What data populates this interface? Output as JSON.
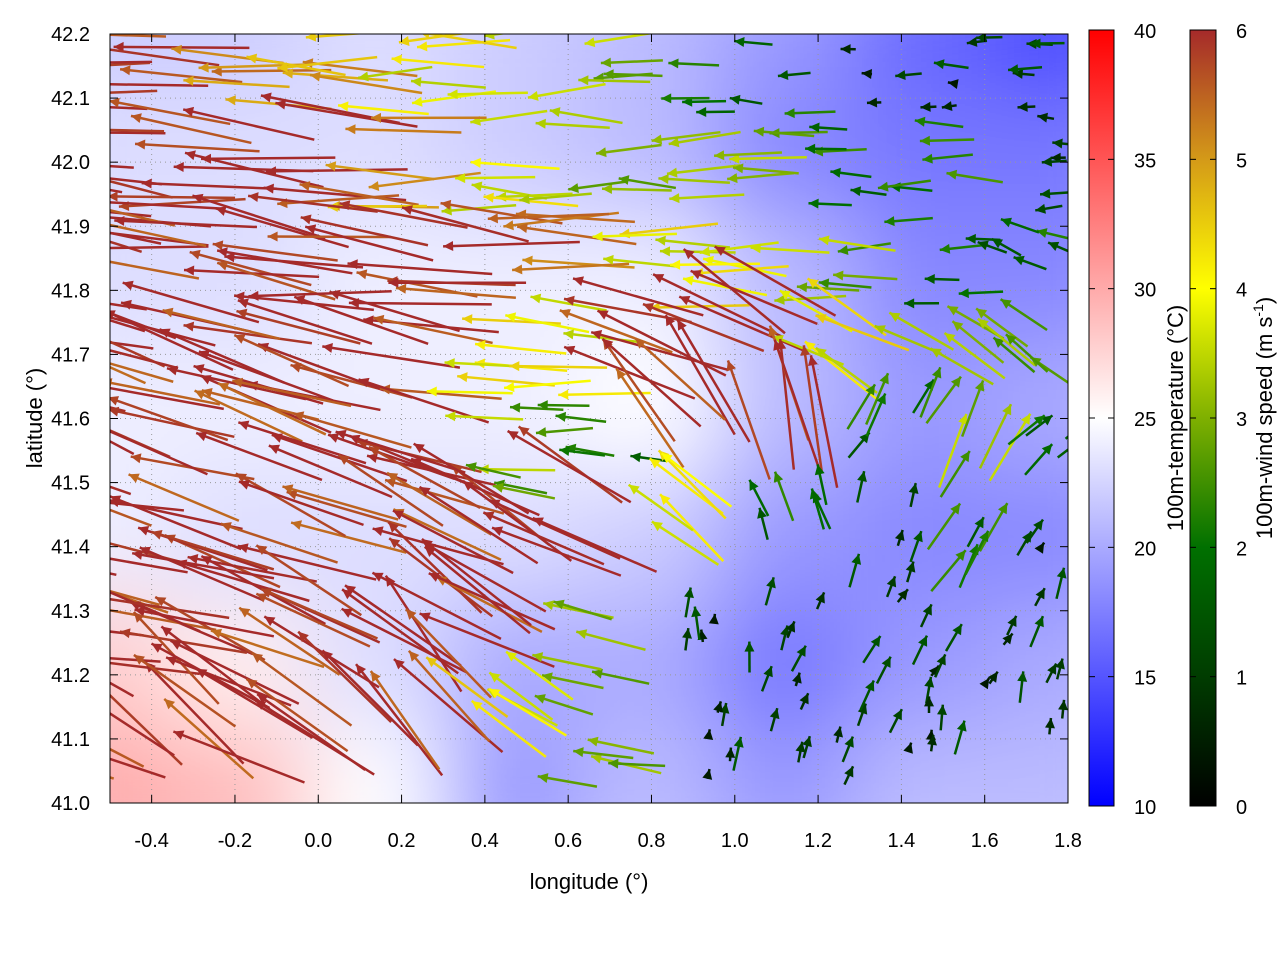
{
  "chart_data": {
    "type": "heatmap",
    "subtype": "vector-field-over-heatmap",
    "xlabel": "longitude (°)",
    "ylabel": "latitude (°)",
    "xlim": [
      -0.5,
      1.8
    ],
    "ylim": [
      41.0,
      42.2
    ],
    "xticks": [
      "-0.4",
      "-0.2",
      "0.0",
      "0.2",
      "0.4",
      "0.6",
      "0.8",
      "1.0",
      "1.2",
      "1.4",
      "1.6",
      "1.8"
    ],
    "xtick_values": [
      -0.4,
      -0.2,
      0.0,
      0.2,
      0.4,
      0.6,
      0.8,
      1.0,
      1.2,
      1.4,
      1.6,
      1.8
    ],
    "yticks": [
      "41.0",
      "41.1",
      "41.2",
      "41.3",
      "41.4",
      "41.5",
      "41.6",
      "41.7",
      "41.8",
      "41.9",
      "42.0",
      "42.1",
      "42.2"
    ],
    "ytick_values": [
      41.0,
      41.1,
      41.2,
      41.3,
      41.4,
      41.5,
      41.6,
      41.7,
      41.8,
      41.9,
      42.0,
      42.1,
      42.2
    ],
    "grid": true,
    "temperature": {
      "label": "100m-temperature (°C)",
      "range": [
        10,
        40
      ],
      "ticks": [
        "10",
        "15",
        "20",
        "25",
        "30",
        "35",
        "40"
      ],
      "tick_values": [
        10,
        15,
        20,
        25,
        30,
        35,
        40
      ],
      "lons": [
        -0.5,
        -0.17,
        0.16,
        0.49,
        0.81,
        1.14,
        1.47,
        1.8
      ],
      "lats": [
        42.2,
        42.0,
        41.8,
        41.6,
        41.4,
        41.2,
        41.0
      ],
      "values": [
        [
          22,
          22,
          23,
          22,
          21,
          19,
          16,
          14
        ],
        [
          23,
          23,
          23,
          22,
          21,
          18,
          17,
          17
        ],
        [
          23,
          23,
          24,
          24,
          24,
          21,
          18,
          18
        ],
        [
          24,
          24,
          24,
          24,
          25,
          21,
          19,
          20
        ],
        [
          24,
          23,
          23,
          23,
          22,
          19,
          18,
          18
        ],
        [
          28,
          26,
          23,
          20,
          20,
          17,
          19,
          20
        ],
        [
          30,
          29,
          25,
          19,
          21,
          19,
          21,
          21
        ]
      ]
    },
    "wind": {
      "label": "100m-wind speed (m s-1)",
      "label_main": "100m-wind speed (m s",
      "label_sup": "-1",
      "label_end": ")",
      "range": [
        0,
        6
      ],
      "ticks": [
        "0",
        "1",
        "2",
        "3",
        "4",
        "5",
        "6"
      ],
      "tick_values": [
        0,
        1,
        2,
        3,
        4,
        5,
        6
      ],
      "lons": [
        -0.45,
        -0.25,
        -0.05,
        0.15,
        0.35,
        0.55,
        0.75,
        0.95,
        1.15,
        1.35,
        1.55,
        1.75
      ],
      "lats": [
        42.15,
        42.0,
        41.85,
        41.7,
        41.55,
        41.4,
        41.25,
        41.1
      ],
      "speed": [
        [
          6,
          6,
          5,
          5,
          4,
          4,
          3,
          2,
          2,
          1,
          1,
          1
        ],
        [
          6,
          6,
          6,
          6,
          5,
          4,
          3,
          3,
          3,
          2,
          2,
          1
        ],
        [
          6,
          6,
          6,
          6,
          6,
          6,
          5,
          4,
          4,
          3,
          2,
          2
        ],
        [
          6,
          6,
          6,
          6,
          6,
          4,
          4,
          6,
          6,
          4,
          3,
          3
        ],
        [
          6,
          6,
          6,
          6,
          6,
          3,
          2,
          6,
          6,
          2,
          3,
          2
        ],
        [
          6,
          6,
          6,
          6,
          6,
          6,
          6,
          4,
          2,
          1,
          2,
          1
        ],
        [
          6,
          6,
          6,
          6,
          6,
          6,
          3,
          1,
          1,
          1,
          1,
          1
        ],
        [
          6,
          6,
          6,
          6,
          6,
          4,
          3,
          1,
          1,
          1,
          1,
          1
        ]
      ],
      "direction_deg": [
        [
          178,
          178,
          178,
          178,
          180,
          180,
          180,
          180,
          180,
          180,
          180,
          175
        ],
        [
          175,
          175,
          175,
          175,
          178,
          178,
          180,
          180,
          180,
          180,
          180,
          180
        ],
        [
          172,
          172,
          172,
          172,
          175,
          175,
          178,
          178,
          178,
          180,
          180,
          160
        ],
        [
          165,
          165,
          165,
          165,
          168,
          170,
          175,
          160,
          150,
          150,
          150,
          140
        ],
        [
          162,
          162,
          162,
          162,
          160,
          170,
          175,
          130,
          100,
          60,
          60,
          45
        ],
        [
          165,
          165,
          162,
          160,
          155,
          150,
          150,
          140,
          110,
          70,
          60,
          50
        ],
        [
          168,
          165,
          160,
          150,
          145,
          150,
          160,
          90,
          70,
          60,
          60,
          70
        ],
        [
          160,
          140,
          150,
          140,
          130,
          150,
          170,
          80,
          70,
          70,
          80,
          90
        ]
      ]
    }
  }
}
